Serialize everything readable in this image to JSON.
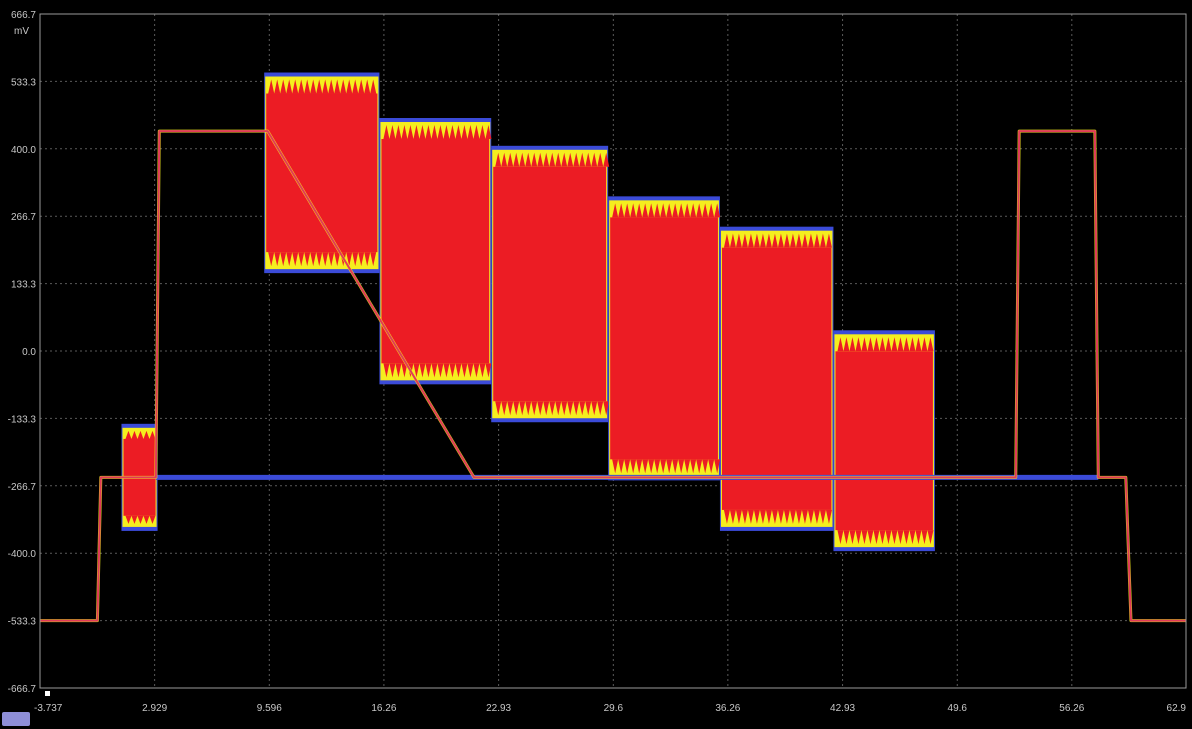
{
  "chart_data": {
    "type": "line",
    "title": "",
    "xlabel": "",
    "ylabel": "",
    "y_unit": "mV",
    "xlim": [
      -3.737,
      62.9
    ],
    "ylim": [
      -666.7,
      666.7
    ],
    "x_ticks": [
      "-3.737",
      "2.929",
      "9.596",
      "16.26",
      "22.93",
      "29.6",
      "36.26",
      "42.93",
      "49.6",
      "56.26",
      "62.9"
    ],
    "x_tick_values": [
      -3.737,
      2.929,
      9.596,
      16.26,
      22.93,
      29.6,
      36.26,
      42.93,
      49.6,
      56.26,
      62.9
    ],
    "y_ticks": [
      "666.7",
      "533.3",
      "400.0",
      "266.7",
      "133.3",
      "0.0",
      "-133.3",
      "-266.7",
      "-400.0",
      "-533.3",
      "-666.7"
    ],
    "y_tick_values": [
      666.7,
      533.3,
      400.0,
      266.7,
      133.3,
      0.0,
      -133.3,
      -266.7,
      -400.0,
      -533.3,
      -666.7
    ],
    "grid": true,
    "colors": {
      "envelope_outer": "#3b4bd8",
      "envelope_mid": "#f5ee1e",
      "envelope_core": "#ec1c24",
      "baseline": "#3b4bd8",
      "dc_trace": "#e03a5a",
      "edge": "#f5ee1e"
    },
    "series": [
      {
        "role": "dc-level",
        "points": [
          [
            -3.737,
            -533.3
          ],
          [
            -0.4,
            -533.3
          ],
          [
            -0.2,
            -250
          ],
          [
            3.0,
            -250
          ],
          [
            3.2,
            435
          ],
          [
            9.5,
            435
          ],
          [
            21.5,
            -250
          ],
          [
            53.0,
            -250
          ],
          [
            53.2,
            435
          ],
          [
            57.6,
            435
          ],
          [
            57.8,
            -250
          ],
          [
            59.4,
            -250
          ],
          [
            59.7,
            -533.3
          ],
          [
            62.9,
            -533.3
          ]
        ]
      },
      {
        "role": "baseline",
        "points": [
          [
            3.0,
            -250
          ],
          [
            57.8,
            -250
          ]
        ]
      },
      {
        "role": "burst-envelope",
        "segments": [
          {
            "x": [
              1.0,
              3.1
            ],
            "upper": -150,
            "lower": -350
          },
          {
            "x": [
              9.3,
              16.0
            ],
            "upper": 545,
            "lower": 160
          },
          {
            "x": [
              16.0,
              22.5
            ],
            "upper": 455,
            "lower": -60
          },
          {
            "x": [
              22.5,
              29.3
            ],
            "upper": 400,
            "lower": -135
          },
          {
            "x": [
              29.3,
              35.8
            ],
            "upper": 300,
            "lower": -250
          },
          {
            "x": [
              35.8,
              42.4
            ],
            "upper": 240,
            "lower": -350
          },
          {
            "x": [
              42.4,
              48.3
            ],
            "upper": 35,
            "lower": -390
          }
        ]
      }
    ]
  }
}
